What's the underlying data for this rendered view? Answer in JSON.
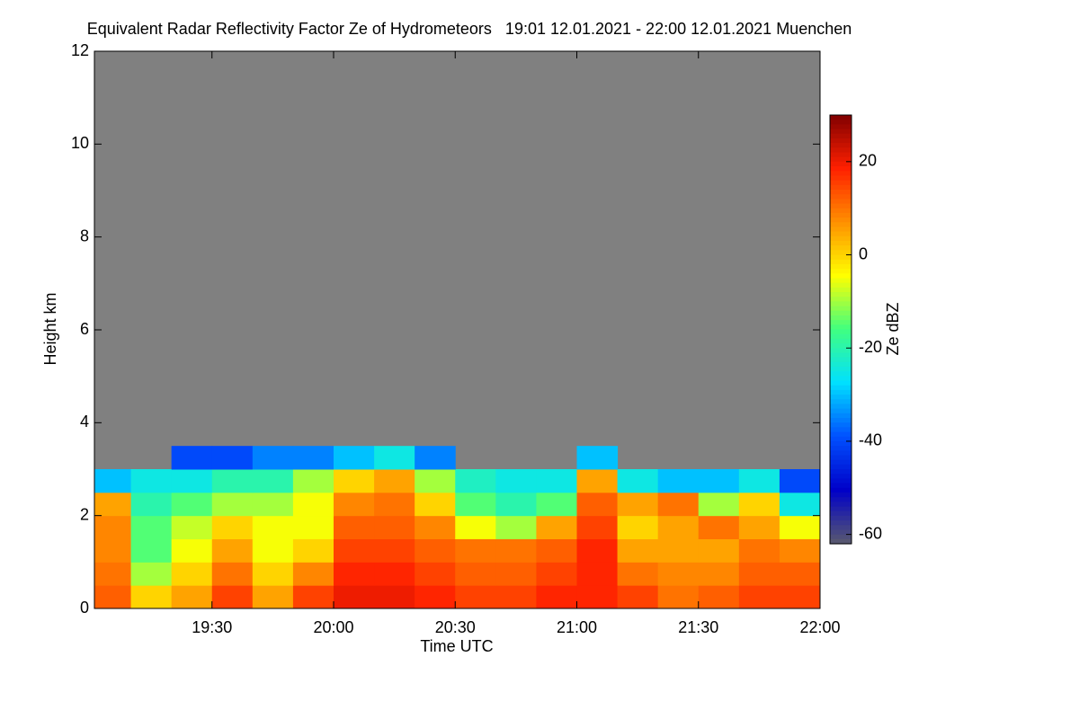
{
  "chart_data": {
    "type": "heatmap",
    "title": "Equivalent Radar Reflectivity Factor Ze of Hydrometeors   19:01 12.01.2021 - 22:00 12.01.2021 Muenchen",
    "x_label": "Time UTC",
    "y_label": "Height km",
    "colorbar_label": "Ze dBZ",
    "xlim": [
      1141,
      1320
    ],
    "xticks": [
      {
        "value": 1170,
        "label": "19:30"
      },
      {
        "value": 1200,
        "label": "20:00"
      },
      {
        "value": 1230,
        "label": "20:30"
      },
      {
        "value": 1260,
        "label": "21:00"
      },
      {
        "value": 1290,
        "label": "21:30"
      },
      {
        "value": 1320,
        "label": "22:00"
      }
    ],
    "ylim": [
      0,
      12
    ],
    "yticks": [
      0,
      2,
      4,
      6,
      8,
      10,
      12
    ],
    "clim": [
      -62,
      30
    ],
    "cticks": [
      20,
      0,
      -20,
      -40,
      -60
    ],
    "colormap": [
      "#5a5a6e",
      "#0000c8",
      "#0050ff",
      "#00e0ff",
      "#40ff80",
      "#ffff00",
      "#ff9000",
      "#ff2000",
      "#800000"
    ],
    "no_data_color": "#808080",
    "x_bins": [
      1141,
      1150,
      1160,
      1170,
      1180,
      1190,
      1200,
      1210,
      1220,
      1230,
      1240,
      1250,
      1260,
      1270,
      1280,
      1290,
      1300,
      1310,
      1320
    ],
    "y_bins": [
      0,
      0.5,
      1,
      1.5,
      2,
      2.5,
      3,
      3.5
    ],
    "z": [
      [
        12,
        0,
        5,
        15,
        5,
        15,
        20,
        20,
        18,
        15,
        15,
        18,
        18,
        15,
        10,
        12,
        15,
        15
      ],
      [
        10,
        -10,
        0,
        10,
        0,
        8,
        18,
        18,
        15,
        12,
        12,
        15,
        18,
        10,
        8,
        8,
        12,
        12
      ],
      [
        8,
        -15,
        -5,
        5,
        -5,
        0,
        15,
        15,
        12,
        10,
        10,
        12,
        18,
        5,
        5,
        5,
        10,
        8
      ],
      [
        8,
        -15,
        -8,
        0,
        -5,
        -5,
        12,
        12,
        8,
        -5,
        -10,
        5,
        15,
        0,
        5,
        10,
        5,
        -5
      ],
      [
        5,
        -20,
        -15,
        -10,
        -10,
        -5,
        8,
        10,
        0,
        -15,
        -20,
        -15,
        12,
        5,
        10,
        -10,
        0,
        -25
      ],
      [
        -30,
        -25,
        -25,
        -20,
        -20,
        -10,
        0,
        5,
        -10,
        -22,
        -25,
        -25,
        5,
        -25,
        -30,
        -30,
        -25,
        -40
      ],
      [
        null,
        null,
        -40,
        -40,
        -35,
        -35,
        -30,
        -25,
        -35,
        null,
        null,
        null,
        -30,
        null,
        null,
        null,
        null,
        null
      ]
    ]
  }
}
